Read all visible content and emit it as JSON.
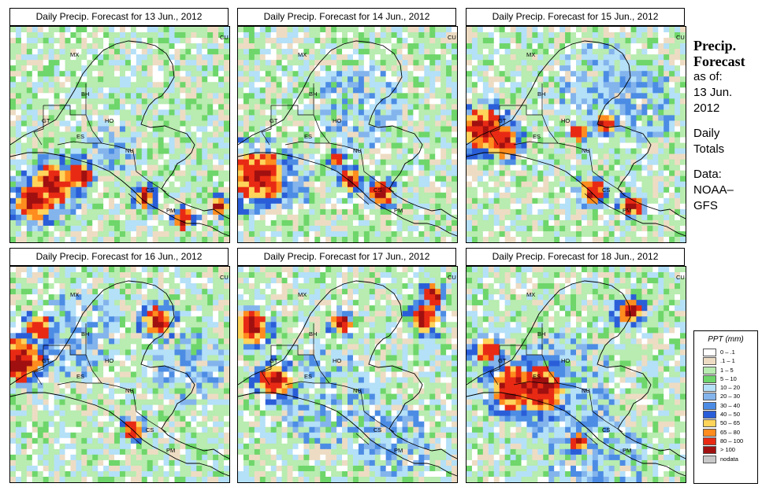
{
  "panels": [
    {
      "title": "Daily Precip. Forecast for  13 Jun., 2012",
      "seed": 13,
      "hot": [
        [
          0.18,
          0.72,
          1.0
        ],
        [
          0.1,
          0.8,
          0.9
        ],
        [
          0.3,
          0.68,
          0.7
        ],
        [
          0.6,
          0.78,
          0.5
        ],
        [
          0.78,
          0.88,
          0.5
        ],
        [
          0.94,
          0.82,
          0.4
        ]
      ],
      "wet": [
        [
          0.45,
          0.55,
          0.4
        ],
        [
          0.15,
          0.75,
          0.6
        ]
      ]
    },
    {
      "title": "Daily Precip. Forecast for  14 Jun., 2012",
      "seed": 14,
      "hot": [
        [
          0.08,
          0.68,
          1.3
        ],
        [
          0.5,
          0.7,
          0.5
        ],
        [
          0.64,
          0.76,
          0.6
        ],
        [
          0.44,
          0.6,
          0.4
        ]
      ],
      "wet": [
        [
          0.55,
          0.35,
          0.7
        ],
        [
          0.2,
          0.7,
          0.5
        ]
      ]
    },
    {
      "title": "Daily Precip. Forecast for  15 Jun., 2012",
      "seed": 15,
      "hot": [
        [
          0.06,
          0.46,
          1.0
        ],
        [
          0.15,
          0.52,
          0.8
        ],
        [
          0.5,
          0.48,
          0.4
        ],
        [
          0.62,
          0.44,
          0.5
        ],
        [
          0.56,
          0.75,
          0.6
        ],
        [
          0.74,
          0.82,
          0.5
        ]
      ],
      "wet": [
        [
          0.6,
          0.25,
          0.7
        ],
        [
          0.8,
          0.35,
          0.6
        ]
      ]
    },
    {
      "title": "Daily Precip. Forecast for  16 Jun., 2012",
      "seed": 16,
      "hot": [
        [
          0.03,
          0.42,
          1.1
        ],
        [
          0.12,
          0.27,
          0.6
        ],
        [
          0.66,
          0.24,
          0.7
        ],
        [
          0.55,
          0.74,
          0.5
        ]
      ],
      "wet": [
        [
          0.3,
          0.3,
          0.7
        ],
        [
          0.8,
          0.45,
          0.6
        ]
      ]
    },
    {
      "title": "Daily Precip. Forecast for  17 Jun., 2012",
      "seed": 17,
      "hot": [
        [
          0.05,
          0.27,
          0.8
        ],
        [
          0.16,
          0.52,
          0.8
        ],
        [
          0.46,
          0.25,
          0.5
        ],
        [
          0.84,
          0.23,
          0.7
        ],
        [
          0.88,
          0.12,
          0.5
        ]
      ],
      "wet": [
        [
          0.4,
          0.6,
          0.8
        ],
        [
          0.7,
          0.8,
          0.6
        ]
      ]
    },
    {
      "title": "Daily Precip. Forecast for  18 Jun., 2012",
      "seed": 18,
      "hot": [
        [
          0.2,
          0.55,
          1.1
        ],
        [
          0.32,
          0.56,
          1.2
        ],
        [
          0.08,
          0.38,
          0.6
        ],
        [
          0.73,
          0.2,
          0.6
        ],
        [
          0.5,
          0.8,
          0.4
        ]
      ],
      "wet": [
        [
          0.42,
          0.55,
          0.9
        ],
        [
          0.58,
          0.9,
          0.8
        ]
      ]
    }
  ],
  "country_labels": [
    "MX",
    "BH",
    "GT",
    "HO",
    "ES",
    "NU",
    "CS",
    "PM",
    "CU"
  ],
  "sidebar": {
    "heading_line1": "Precip.",
    "heading_line2": "Forecast",
    "asof_label": "as of:",
    "asof_date_line1": "13 Jun.",
    "asof_date_line2": "2012",
    "totals_line1": "Daily",
    "totals_line2": "Totals",
    "data_line1": "Data:",
    "data_line2": "NOAA–",
    "data_line3": "GFS"
  },
  "legend": {
    "title": "PPT (mm)",
    "items": [
      {
        "label": "0 – .1",
        "color": "#ffffff"
      },
      {
        "label": ".1 – 1",
        "color": "#eddcc3"
      },
      {
        "label": "1 – 5",
        "color": "#b8ecb0"
      },
      {
        "label": "5 – 10",
        "color": "#6ed66a"
      },
      {
        "label": "10 – 20",
        "color": "#b4e0f8"
      },
      {
        "label": "20 – 30",
        "color": "#84b4ec"
      },
      {
        "label": "30 – 40",
        "color": "#4c8ce4"
      },
      {
        "label": "40 – 50",
        "color": "#2a5ed8"
      },
      {
        "label": "50 – 65",
        "color": "#ffd45a"
      },
      {
        "label": "65 – 80",
        "color": "#ff8c1e"
      },
      {
        "label": "80 – 100",
        "color": "#e82a14"
      },
      {
        "label": "> 100",
        "color": "#a01010"
      },
      {
        "label": "nodata",
        "color": "#c8c8c8"
      }
    ]
  }
}
